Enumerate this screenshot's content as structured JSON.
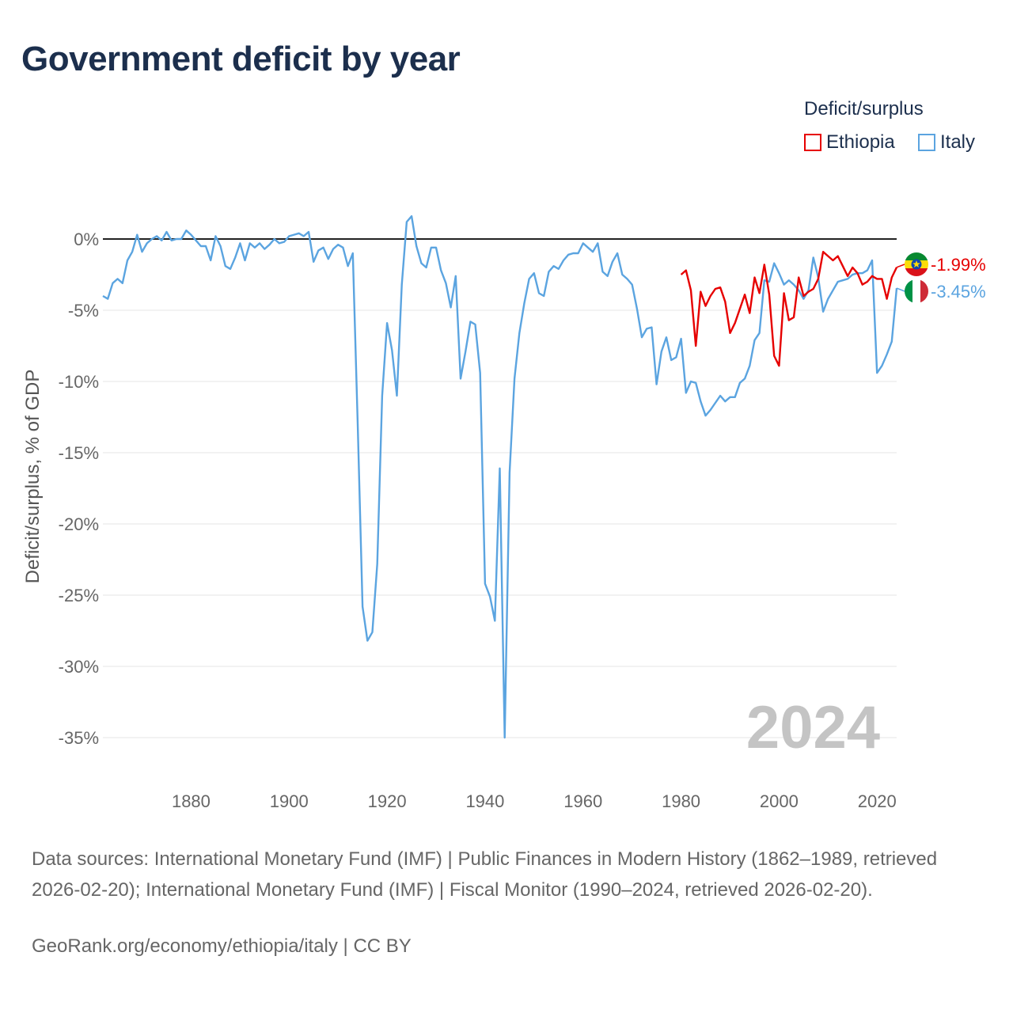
{
  "title": "Government deficit by year",
  "legend": {
    "title": "Deficit/surplus",
    "items": [
      {
        "label": "Ethiopia",
        "color": "#e60000"
      },
      {
        "label": "Italy",
        "color": "#5ba4e0"
      }
    ]
  },
  "footer": {
    "sources": "Data sources: International Monetary Fund (IMF) | Public Finances in Modern History (1862–1989, retrieved 2026-02-20); International Monetary Fund (IMF) | Fiscal Monitor (1990–2024, retrieved 2026-02-20).",
    "credit": "GeoRank.org/economy/ethiopia/italy | CC BY"
  },
  "chart_data": {
    "type": "line",
    "title": "Government deficit by year",
    "xlabel": "",
    "ylabel": "Deficit/surplus, % of GDP",
    "xlim": [
      1862,
      2024
    ],
    "ylim": [
      -35,
      2
    ],
    "x_ticks": [
      1880,
      1900,
      1920,
      1940,
      1960,
      1980,
      2000,
      2020
    ],
    "x_tick_labels": [
      "1880",
      "1900",
      "1920",
      "1940",
      "1960",
      "1980",
      "2000",
      "2020"
    ],
    "y_ticks": [
      0,
      -5,
      -10,
      -15,
      -20,
      -25,
      -30,
      -35
    ],
    "y_tick_labels": [
      "0%",
      "-5%",
      "-10%",
      "-15%",
      "-20%",
      "-25%",
      "-30%",
      "-35%"
    ],
    "year_label": "2024",
    "series": [
      {
        "name": "Ethiopia",
        "color": "#e60000",
        "end_label": "-1.99%",
        "x": [
          1980,
          1981,
          1982,
          1983,
          1984,
          1985,
          1986,
          1987,
          1988,
          1989,
          1990,
          1991,
          1992,
          1993,
          1994,
          1995,
          1996,
          1997,
          1998,
          1999,
          2000,
          2001,
          2002,
          2003,
          2004,
          2005,
          2006,
          2007,
          2008,
          2009,
          2010,
          2011,
          2012,
          2013,
          2014,
          2015,
          2016,
          2017,
          2018,
          2019,
          2020,
          2021,
          2022,
          2023,
          2024
        ],
        "values": [
          -2.5,
          -2.2,
          -3.6,
          -7.5,
          -3.7,
          -4.7,
          -4.0,
          -3.5,
          -3.4,
          -4.4,
          -6.6,
          -5.9,
          -4.9,
          -3.9,
          -5.2,
          -2.7,
          -3.8,
          -1.8,
          -3.9,
          -8.2,
          -8.9,
          -3.8,
          -5.7,
          -5.5,
          -2.7,
          -4.0,
          -3.7,
          -3.5,
          -2.8,
          -0.9,
          -1.2,
          -1.5,
          -1.2,
          -1.9,
          -2.6,
          -2.0,
          -2.4,
          -3.2,
          -3.0,
          -2.6,
          -2.8,
          -2.8,
          -4.2,
          -2.7,
          -1.99
        ]
      },
      {
        "name": "Italy",
        "color": "#5ba4e0",
        "end_label": "-3.45%",
        "x": [
          1862,
          1863,
          1864,
          1865,
          1866,
          1867,
          1868,
          1869,
          1870,
          1871,
          1872,
          1873,
          1874,
          1875,
          1876,
          1877,
          1878,
          1879,
          1880,
          1881,
          1882,
          1883,
          1884,
          1885,
          1886,
          1887,
          1888,
          1889,
          1890,
          1891,
          1892,
          1893,
          1894,
          1895,
          1896,
          1897,
          1898,
          1899,
          1900,
          1901,
          1902,
          1903,
          1904,
          1905,
          1906,
          1907,
          1908,
          1909,
          1910,
          1911,
          1912,
          1913,
          1914,
          1915,
          1916,
          1917,
          1918,
          1919,
          1920,
          1921,
          1922,
          1923,
          1924,
          1925,
          1926,
          1927,
          1928,
          1929,
          1930,
          1931,
          1932,
          1933,
          1934,
          1935,
          1936,
          1937,
          1938,
          1939,
          1940,
          1941,
          1942,
          1943,
          1944,
          1945,
          1946,
          1947,
          1948,
          1949,
          1950,
          1951,
          1952,
          1953,
          1954,
          1955,
          1956,
          1957,
          1958,
          1959,
          1960,
          1961,
          1962,
          1963,
          1964,
          1965,
          1966,
          1967,
          1968,
          1969,
          1970,
          1971,
          1972,
          1973,
          1974,
          1975,
          1976,
          1977,
          1978,
          1979,
          1980,
          1981,
          1982,
          1983,
          1984,
          1985,
          1986,
          1987,
          1988,
          1989,
          1990,
          1991,
          1992,
          1993,
          1994,
          1995,
          1996,
          1997,
          1998,
          1999,
          2000,
          2001,
          2002,
          2003,
          2004,
          2005,
          2006,
          2007,
          2008,
          2009,
          2010,
          2011,
          2012,
          2013,
          2014,
          2015,
          2016,
          2017,
          2018,
          2019,
          2020,
          2021,
          2022,
          2023,
          2024
        ],
        "values": [
          -4.0,
          -4.2,
          -3.1,
          -2.8,
          -3.1,
          -1.5,
          -0.9,
          0.3,
          -0.9,
          -0.3,
          0.0,
          0.2,
          -0.1,
          0.5,
          -0.1,
          0.0,
          0.0,
          0.6,
          0.3,
          -0.1,
          -0.5,
          -0.5,
          -1.5,
          0.2,
          -0.5,
          -1.9,
          -2.1,
          -1.3,
          -0.3,
          -1.5,
          -0.3,
          -0.6,
          -0.3,
          -0.7,
          -0.4,
          0.0,
          -0.3,
          -0.2,
          0.2,
          0.3,
          0.4,
          0.2,
          0.5,
          -1.6,
          -0.8,
          -0.6,
          -1.4,
          -0.7,
          -0.4,
          -0.6,
          -1.9,
          -1.0,
          -13.0,
          -25.8,
          -28.2,
          -27.6,
          -22.8,
          -11.0,
          -5.9,
          -7.8,
          -11.0,
          -3.2,
          1.2,
          1.6,
          -0.5,
          -1.7,
          -2.0,
          -0.6,
          -0.6,
          -2.2,
          -3.1,
          -4.8,
          -2.6,
          -9.8,
          -7.9,
          -5.8,
          -6.0,
          -9.4,
          -24.2,
          -25.1,
          -26.8,
          -16.1,
          -35.0,
          -16.4,
          -9.8,
          -6.6,
          -4.5,
          -2.8,
          -2.4,
          -3.8,
          -4.0,
          -2.3,
          -1.9,
          -2.1,
          -1.5,
          -1.1,
          -1.0,
          -1.0,
          -0.3,
          -0.6,
          -0.9,
          -0.3,
          -2.3,
          -2.6,
          -1.6,
          -1.0,
          -2.5,
          -2.8,
          -3.2,
          -4.9,
          -6.9,
          -6.3,
          -6.2,
          -10.2,
          -7.9,
          -6.9,
          -8.5,
          -8.3,
          -7.0,
          -10.8,
          -10.0,
          -10.1,
          -11.4,
          -12.4,
          -12.0,
          -11.5,
          -11.0,
          -11.4,
          -11.1,
          -11.1,
          -10.1,
          -9.8,
          -8.9,
          -7.1,
          -6.6,
          -2.9,
          -3.0,
          -1.7,
          -2.4,
          -3.2,
          -2.9,
          -3.2,
          -3.6,
          -4.2,
          -3.6,
          -1.3,
          -2.7,
          -5.1,
          -4.2,
          -3.6,
          -3.0,
          -2.9,
          -2.8,
          -2.5,
          -2.4,
          -2.4,
          -2.2,
          -1.5,
          -9.4,
          -8.9,
          -8.1,
          -7.2,
          -3.45
        ]
      }
    ]
  }
}
